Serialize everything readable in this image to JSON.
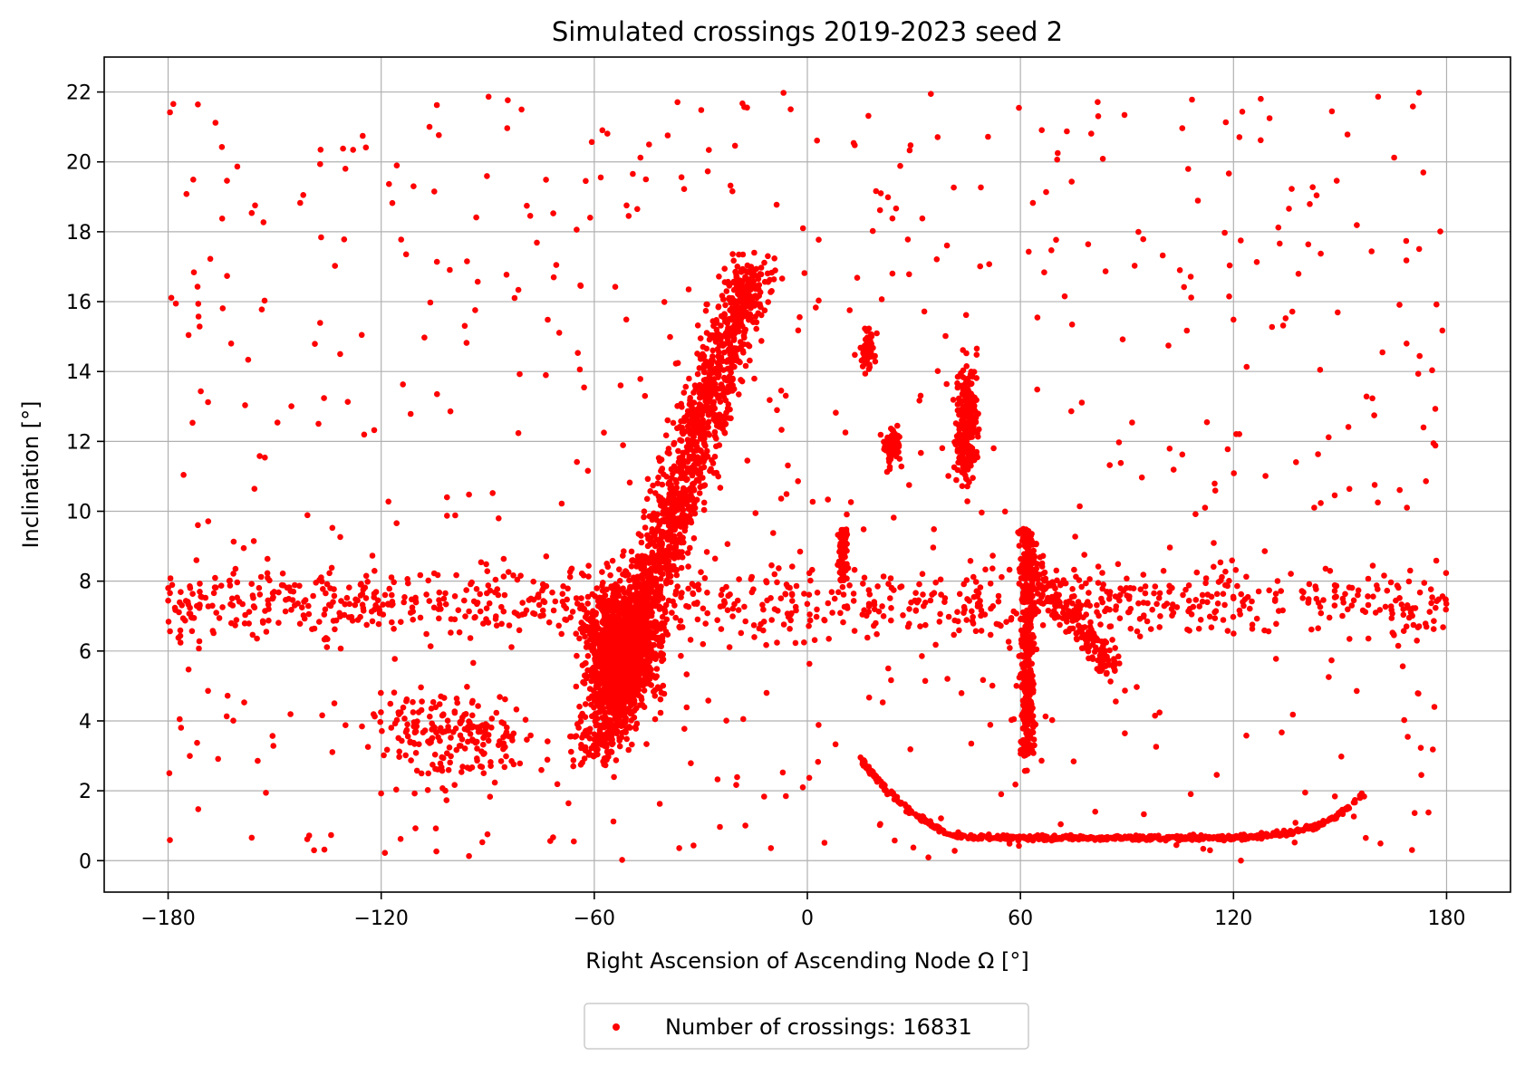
{
  "chart_data": {
    "type": "scatter",
    "title": "Simulated crossings  2019-2023 seed 2",
    "xlabel": "Right Ascension of Ascending Node Ω [°]",
    "ylabel": "Inclination [°]",
    "xlim": [
      -198,
      198
    ],
    "ylim": [
      -0.9,
      23
    ],
    "xticks": [
      -180,
      -120,
      -60,
      0,
      60,
      120,
      180
    ],
    "yticks": [
      0,
      2,
      4,
      6,
      8,
      10,
      12,
      14,
      16,
      18,
      20,
      22
    ],
    "xtick_labels": [
      "−180",
      "−120",
      "−60",
      "0",
      "60",
      "120",
      "180"
    ],
    "ytick_labels": [
      "0",
      "2",
      "4",
      "6",
      "8",
      "10",
      "12",
      "14",
      "16",
      "18",
      "20",
      "22"
    ],
    "grid": true,
    "legend_placement": "below plot, centered",
    "marker_color": "#ff0000",
    "legend": [
      "Number of crossings: 16831"
    ],
    "clusters": [
      {
        "name": "diagonal band lower",
        "x_range": [
          -68,
          -40
        ],
        "y_range": [
          2.5,
          9
        ]
      },
      {
        "name": "diagonal band upper",
        "x_range": [
          -45,
          -10
        ],
        "y_range": [
          9,
          17
        ]
      },
      {
        "name": "horizontal band",
        "x_range": [
          -180,
          180
        ],
        "y_range": [
          6,
          9
        ]
      },
      {
        "name": "low-inclination arc",
        "x_range": [
          15,
          158
        ],
        "y_range": [
          0.6,
          2.5
        ]
      },
      {
        "name": "vertical band",
        "x_range": [
          60,
          68
        ],
        "y_range": [
          3,
          9.5
        ]
      },
      {
        "name": "cluster",
        "x_center": 45,
        "y_center": 12.5
      },
      {
        "name": "cluster",
        "x_center": 24,
        "y_center": 11.9
      },
      {
        "name": "cluster",
        "x_center": 17,
        "y_center": 14.7
      }
    ]
  }
}
